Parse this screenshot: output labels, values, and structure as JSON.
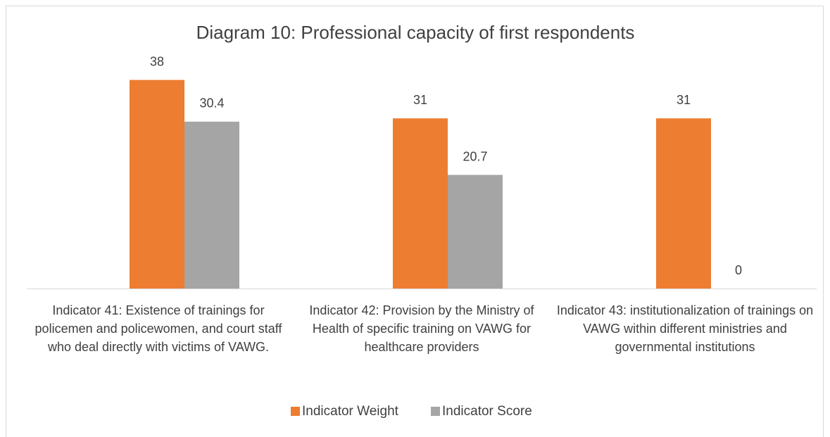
{
  "chart_data": {
    "type": "bar",
    "title": "Diagram 10: Professional capacity of first respondents",
    "categories": [
      "Indicator 41: Existence of trainings for policemen and policewomen, and court staff who deal directly with victims of VAWG.",
      "Indicator 42: Provision by the Ministry of Health of specific training on VAWG for healthcare providers",
      "Indicator 43:  institutionalization of trainings on VAWG within different ministries and governmental institutions"
    ],
    "series": [
      {
        "name": "Indicator Weight",
        "color": "#ed7d31",
        "values": [
          38,
          31,
          31
        ]
      },
      {
        "name": "Indicator Score",
        "color": "#a5a5a5",
        "values": [
          30.4,
          20.7,
          0
        ]
      }
    ],
    "ylim": [
      0,
      40
    ],
    "legend": "bottom"
  }
}
